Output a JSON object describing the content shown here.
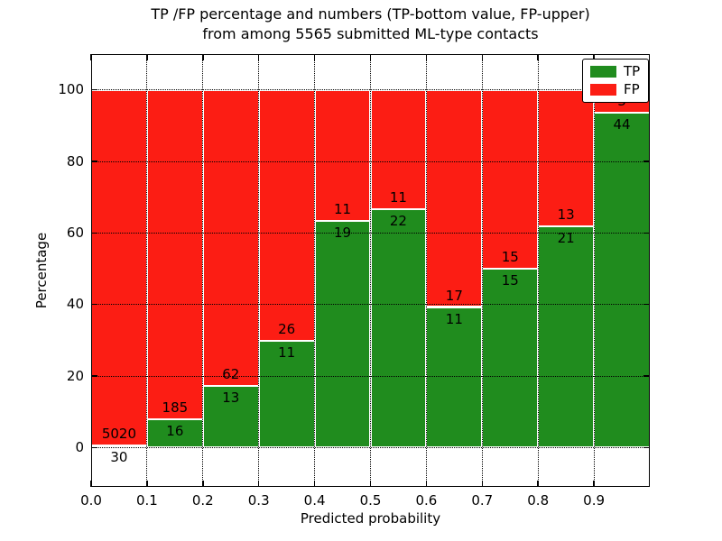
{
  "chart_data": {
    "type": "stacked_bar",
    "title_line1": "TP /FP percentage and numbers (TP-bottom value, FP-upper)",
    "title_line2": "from among 5565 submitted ML-type contacts",
    "xlabel": "Predicted probability",
    "ylabel": "Percentage",
    "total_contacts": 5565,
    "categories": [
      "0.0-0.1",
      "0.1-0.2",
      "0.2-0.3",
      "0.3-0.4",
      "0.4-0.5",
      "0.5-0.6",
      "0.6-0.7",
      "0.7-0.8",
      "0.8-0.9",
      "0.9-1.0"
    ],
    "series": [
      {
        "name": "TP",
        "color": "#208c1e",
        "counts": [
          30,
          16,
          13,
          11,
          19,
          22,
          11,
          15,
          21,
          44
        ],
        "percent": [
          0.59,
          7.96,
          17.33,
          29.73,
          63.33,
          66.67,
          39.29,
          50.0,
          61.76,
          93.62
        ]
      },
      {
        "name": "FP",
        "color": "#fc1d14",
        "counts": [
          5020,
          185,
          62,
          26,
          11,
          11,
          17,
          15,
          13,
          3
        ],
        "percent": [
          99.41,
          92.04,
          82.67,
          70.27,
          36.67,
          33.33,
          60.71,
          50.0,
          38.24,
          6.38
        ]
      }
    ],
    "stacked_to": 100,
    "xticks": [
      "0.0",
      "0.1",
      "0.2",
      "0.3",
      "0.4",
      "0.5",
      "0.6",
      "0.7",
      "0.8",
      "0.9"
    ],
    "ytick_values": [
      0,
      20,
      40,
      60,
      80,
      100
    ],
    "xlim": [
      0.0,
      1.0
    ],
    "ylim": [
      -11,
      110
    ],
    "grid": "dotted",
    "bar_edge_color": "#ffffff",
    "background": "#ffffff",
    "legend": {
      "position": "upper right",
      "entries": [
        "TP",
        "FP"
      ]
    }
  }
}
